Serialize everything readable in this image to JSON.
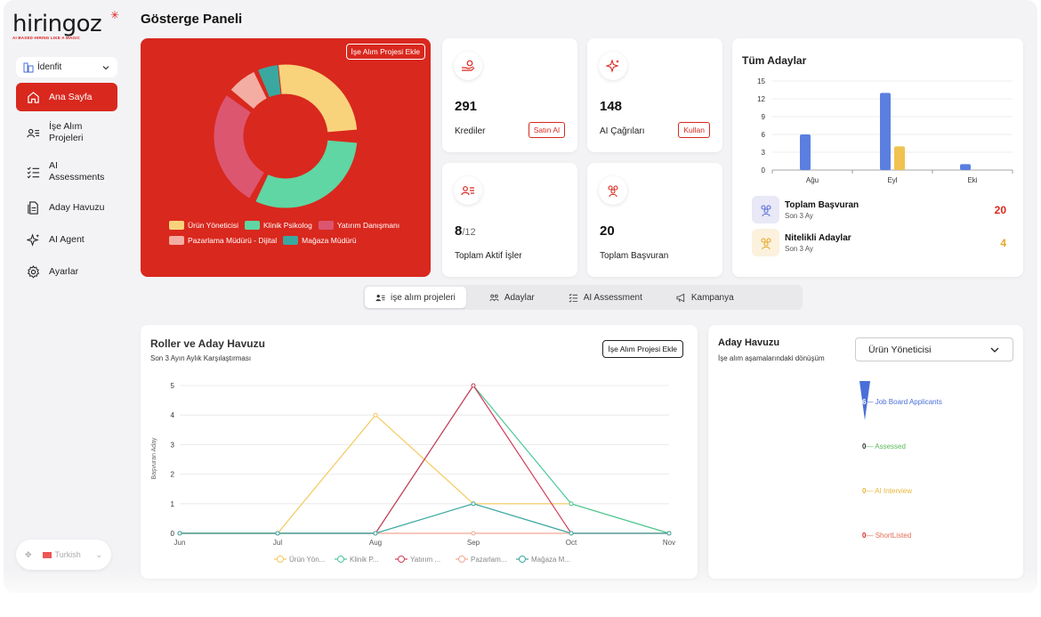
{
  "brand": {
    "name": "hiringoz",
    "tagline": "AI BASED HIRING LIKE A MAGIC"
  },
  "company": {
    "name": "İdenfit"
  },
  "nav": [
    {
      "label": "Ana Sayfa",
      "icon": "home-icon",
      "active": true
    },
    {
      "label": "İşe Alım Projeleri",
      "icon": "user-list-icon"
    },
    {
      "label": "AI Assessments",
      "icon": "checklist-icon"
    },
    {
      "label": "Aday Havuzu",
      "icon": "document-icon"
    },
    {
      "label": "AI Agent",
      "icon": "sparkle-icon"
    },
    {
      "label": "Ayarlar",
      "icon": "gear-icon"
    }
  ],
  "language": {
    "label": "Turkish"
  },
  "page": {
    "title": "Gösterge Paneli"
  },
  "donut": {
    "button": "İşe Alım Projesi Ekle",
    "legend": [
      {
        "label": "Ürün Yöneticisi",
        "color": "#f8d37c"
      },
      {
        "label": "Klinik Psikolog",
        "color": "#5fd6a3"
      },
      {
        "label": "Yatırım Danışmanı",
        "color": "#dc5670"
      },
      {
        "label": "Pazarlama Müdürü - Dijital",
        "color": "#f4ada3"
      },
      {
        "label": "Mağaza Müdürü",
        "color": "#3aa8a0"
      }
    ],
    "share_deg": [
      [
        -8,
        85
      ],
      [
        95,
        205
      ],
      [
        210,
        305
      ],
      [
        310,
        334
      ],
      [
        337,
        354
      ]
    ]
  },
  "stats": {
    "credits": {
      "value": "291",
      "label": "Krediler",
      "button": "Satın Al"
    },
    "ai_calls": {
      "value": "148",
      "label": "AI Çağrıları",
      "button": "Kullan"
    },
    "active_jobs": {
      "value": "8",
      "total": "/12",
      "label": "Toplam Aktif İşler"
    },
    "applicants": {
      "value": "20",
      "label": "Toplam Başvuran"
    }
  },
  "all_candidates": {
    "title": "Tüm Adaylar",
    "summary": [
      {
        "title": "Toplam Başvuran",
        "sub": "Son 3 Ay",
        "value": "20",
        "color": "#d9281e"
      },
      {
        "title": "Nitelikli Adaylar",
        "sub": "Son 3 Ay",
        "value": "4",
        "color": "#e5a929"
      }
    ]
  },
  "tabs": [
    {
      "label": "işe alım projeleri",
      "active": true
    },
    {
      "label": "Adaylar"
    },
    {
      "label": "AI Assessment"
    },
    {
      "label": "Kampanya"
    }
  ],
  "roles": {
    "title": "Roller ve Aday Havuzu",
    "subtitle": "Son 3 Ayın Aylık Karşılaştırması",
    "button": "İşe Alım Projesi Ekle",
    "ylabel": "Başvuran Aday"
  },
  "pool": {
    "title": "Aday Havuzu",
    "subtitle": "İşe alım aşamalarındaki dönüşüm",
    "selected": "Ürün Yöneticisi",
    "stages": [
      {
        "value": "6",
        "label": "Job Board Applicants",
        "color": "#4a6fd8"
      },
      {
        "value": "0",
        "label": "Assessed",
        "color": "#5cb85c"
      },
      {
        "value": "0",
        "label": "AI Interview",
        "color": "#e8b63a"
      },
      {
        "value": "0",
        "label": "ShortListed",
        "color": "#e56a55"
      }
    ]
  },
  "chart_data": [
    {
      "type": "bar",
      "title": "Tüm Adaylar",
      "categories": [
        "Ağu",
        "Eyl",
        "Eki"
      ],
      "series": [
        {
          "color": "#5b7fe0",
          "values": [
            6,
            13,
            1
          ]
        },
        {
          "color": "#f0c251",
          "values": [
            0,
            4,
            0
          ]
        }
      ],
      "yticks": [
        0,
        3,
        6,
        9,
        12,
        15
      ],
      "ylim": [
        0,
        15
      ]
    },
    {
      "type": "line",
      "title": "Roller ve Aday Havuzu",
      "categories": [
        "Jun",
        "Jul",
        "Aug",
        "Sep",
        "Oct",
        "Nov"
      ],
      "ylabel": "Başvuran Aday",
      "yticks": [
        0,
        1,
        2,
        3,
        4,
        5
      ],
      "ylim": [
        0,
        5
      ],
      "series": [
        {
          "name": "Ürün Yön...",
          "color": "#f4c95d",
          "values": [
            0,
            0,
            4,
            1,
            1,
            0
          ]
        },
        {
          "name": "Klinik P...",
          "color": "#49c99a",
          "values": [
            0,
            0,
            0,
            5,
            1,
            0
          ]
        },
        {
          "name": "Yatırım ...",
          "color": "#d43c5a",
          "values": [
            0,
            0,
            0,
            5,
            0,
            0
          ]
        },
        {
          "name": "Pazarlam...",
          "color": "#f2a893",
          "values": [
            0,
            0,
            0,
            0,
            0,
            0
          ]
        },
        {
          "name": "Mağaza M...",
          "color": "#3aa8a0",
          "values": [
            0,
            0,
            0,
            1,
            0,
            0
          ]
        }
      ]
    }
  ]
}
